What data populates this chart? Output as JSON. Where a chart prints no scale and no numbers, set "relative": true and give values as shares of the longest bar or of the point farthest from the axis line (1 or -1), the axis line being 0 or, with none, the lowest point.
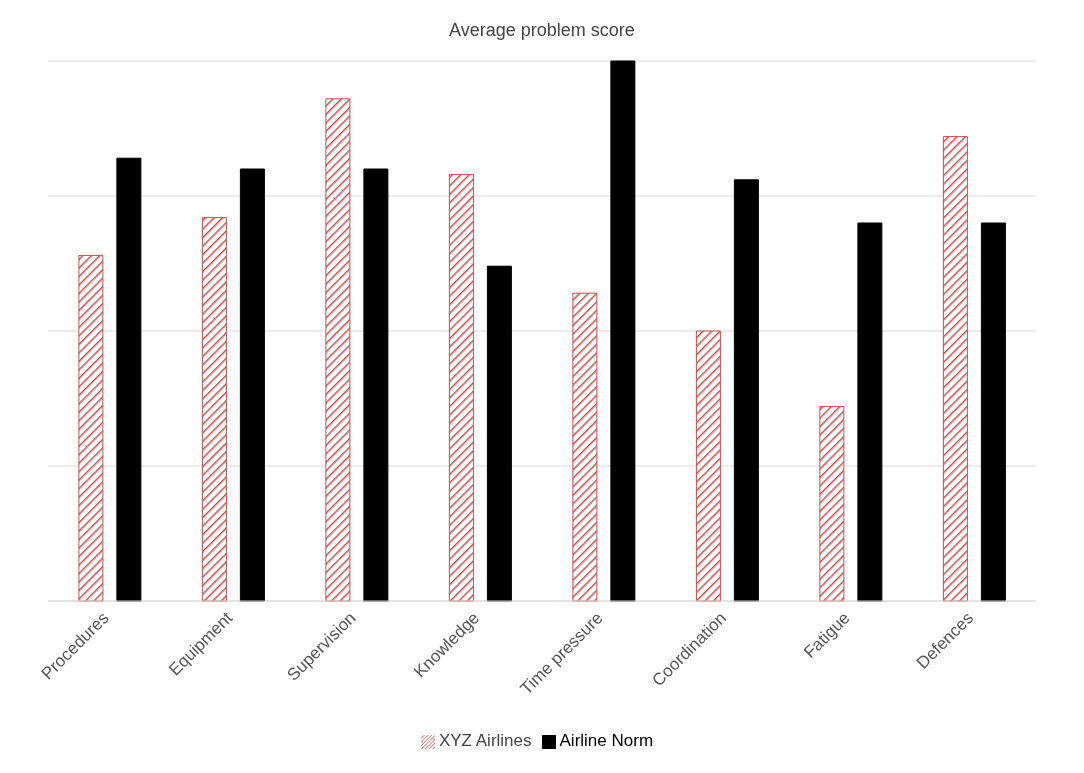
{
  "chart_data": {
    "type": "bar",
    "title": "Average problem score",
    "relative": true,
    "grid": "y",
    "legend": "bottom",
    "categories": [
      "Procedures",
      "Equipment",
      "Supervision",
      "Knowledge",
      "Time pressure",
      "Coordination",
      "Fatigue",
      "Defences"
    ],
    "series": [
      {
        "name": "XYZ Airlines",
        "color": "#c0504d",
        "values": [
          0.64,
          0.71,
          0.93,
          0.79,
          0.57,
          0.5,
          0.36,
          0.86
        ]
      },
      {
        "name": "Airline  Norm",
        "color": "#000000",
        "values": [
          0.82,
          0.8,
          0.8,
          0.62,
          1,
          0.78,
          0.7,
          0.7
        ]
      }
    ]
  }
}
